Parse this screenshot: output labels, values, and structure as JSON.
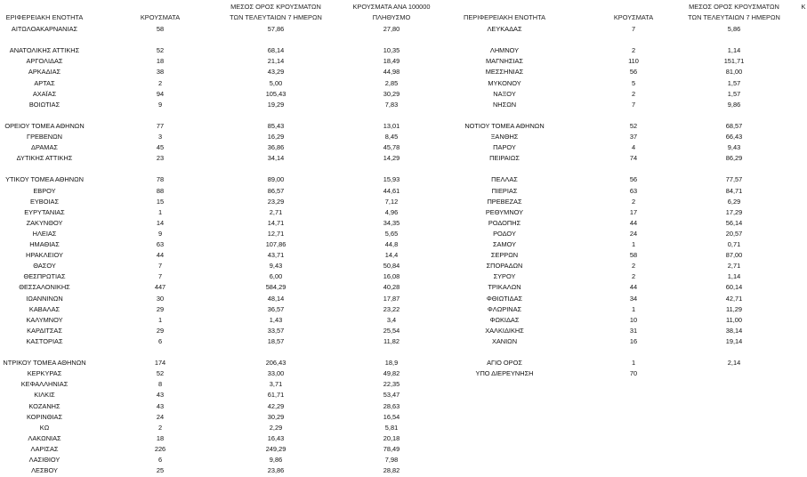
{
  "left": {
    "headers": [
      [
        "ΕΡΙΦΕΡΕΙΑΚΗ ΕΝΟΤΗΤΑ"
      ],
      [
        "ΚΡΟΥΣΜΑΤΑ"
      ],
      [
        "ΜΕΣΟΣ ΟΡΟΣ ΚΡΟΥΣΜΑΤΩΝ",
        "ΤΩΝ ΤΕΛΕΥΤΑΙΩΝ 7 ΗΜΕΡΩΝ"
      ],
      [
        "ΚΡΟΥΣΜΑΤΑ ΑΝΑ 100000",
        "ΠΛΗΘΥΣΜΟ"
      ]
    ],
    "rows": [
      [
        "ΑΙΤΩΛΟΑΚΑΡΝΑΝΙΑΣ",
        "58",
        "57,86",
        "27,80"
      ],
      null,
      [
        "ΑΝΑΤΟΛΙΚΗΣ ΑΤΤΙΚΗΣ",
        "52",
        "68,14",
        "10,35"
      ],
      [
        "ΑΡΓΟΛΙΔΑΣ",
        "18",
        "21,14",
        "18,49"
      ],
      [
        "ΑΡΚΑΔΙΑΣ",
        "38",
        "43,29",
        "44,98"
      ],
      [
        "ΑΡΤΑΣ",
        "2",
        "5,00",
        "2,85"
      ],
      [
        "ΑΧΑΪΑΣ",
        "94",
        "105,43",
        "30,29"
      ],
      [
        "ΒΟΙΩΤΙΑΣ",
        "9",
        "19,29",
        "7,83"
      ],
      null,
      [
        "ΟΡΕΙΟΥ ΤΟΜΕΑ ΑΘΗΝΩΝ",
        "77",
        "85,43",
        "13,01"
      ],
      [
        "ΓΡΕΒΕΝΩΝ",
        "3",
        "16,29",
        "8,45"
      ],
      [
        "ΔΡΑΜΑΣ",
        "45",
        "36,86",
        "45,78"
      ],
      [
        "ΔΥΤΙΚΗΣ ΑΤΤΙΚΗΣ",
        "23",
        "34,14",
        "14,29"
      ],
      null,
      [
        "ΥΤΙΚΟΥ ΤΟΜΕΑ ΑΘΗΝΩΝ",
        "78",
        "89,00",
        "15,93"
      ],
      [
        "ΕΒΡΟΥ",
        "88",
        "86,57",
        "44,61"
      ],
      [
        "ΕΥΒΟΙΑΣ",
        "15",
        "23,29",
        "7,12"
      ],
      [
        "ΕΥΡΥΤΑΝΙΑΣ",
        "1",
        "2,71",
        "4,96"
      ],
      [
        "ΖΑΚΥΝΘΟΥ",
        "14",
        "14,71",
        "34,35"
      ],
      [
        "ΗΛΕΙΑΣ",
        "9",
        "12,71",
        "5,65"
      ],
      [
        "ΗΜΑΘΙΑΣ",
        "63",
        "107,86",
        "44,8"
      ],
      [
        "ΗΡΑΚΛΕΙΟΥ",
        "44",
        "43,71",
        "14,4"
      ],
      [
        "ΘΑΣΟΥ",
        "7",
        "9,43",
        "50,84"
      ],
      [
        "ΘΕΣΠΡΩΤΙΑΣ",
        "7",
        "6,00",
        "16,08"
      ],
      [
        "ΘΕΣΣΑΛΟΝΙΚΗΣ",
        "447",
        "584,29",
        "40,28"
      ],
      [
        "ΙΩΑΝΝΙΝΩΝ",
        "30",
        "48,14",
        "17,87"
      ],
      [
        "ΚΑΒΑΛΑΣ",
        "29",
        "36,57",
        "23,22"
      ],
      [
        "ΚΑΛΥΜΝΟΥ",
        "1",
        "1,43",
        "3,4"
      ],
      [
        "ΚΑΡΔΙΤΣΑΣ",
        "29",
        "33,57",
        "25,54"
      ],
      [
        "ΚΑΣΤΟΡΙΑΣ",
        "6",
        "18,57",
        "11,82"
      ],
      null,
      [
        "ΝΤΡΙΚΟΥ ΤΟΜΕΑ ΑΘΗΝΩΝ",
        "174",
        "206,43",
        "18,9"
      ],
      [
        "ΚΕΡΚΥΡΑΣ",
        "52",
        "33,00",
        "49,82"
      ],
      [
        "ΚΕΦΑΛΛΗΝΙΑΣ",
        "8",
        "3,71",
        "22,35"
      ],
      [
        "ΚΙΛΚΙΣ",
        "43",
        "61,71",
        "53,47"
      ],
      [
        "ΚΟΖΑΝΗΣ",
        "43",
        "42,29",
        "28,63"
      ],
      [
        "ΚΟΡΙΝΘΙΑΣ",
        "24",
        "30,29",
        "16,54"
      ],
      [
        "ΚΩ",
        "2",
        "2,29",
        "5,81"
      ],
      [
        "ΛΑΚΩΝΙΑΣ",
        "18",
        "16,43",
        "20,18"
      ],
      [
        "ΛΑΡΙΣΑΣ",
        "226",
        "249,29",
        "78,49"
      ],
      [
        "ΛΑΣΙΘΙΟΥ",
        "6",
        "9,86",
        "7,98"
      ],
      [
        "ΛΕΣΒΟΥ",
        "25",
        "23,86",
        "28,82"
      ]
    ]
  },
  "right": {
    "headers": [
      [
        "ΠΕΡΙΦΕΡΕΙΑΚΗ ΕΝΟΤΗΤΑ"
      ],
      [
        "ΚΡΟΥΣΜΑΤΑ"
      ],
      [
        "ΜΕΣΟΣ ΟΡΟΣ ΚΡΟΥΣΜΑΤΩΝ",
        "ΤΩΝ ΤΕΛΕΥΤΑΙΩΝ 7 ΗΜΕΡΩΝ"
      ],
      [
        "Κ"
      ]
    ],
    "rows": [
      [
        "ΛΕΥΚΑΔΑΣ",
        "7",
        "5,86"
      ],
      null,
      [
        "ΛΗΜΝΟΥ",
        "2",
        "1,14"
      ],
      [
        "ΜΑΓΝΗΣΙΑΣ",
        "110",
        "151,71"
      ],
      [
        "ΜΕΣΣΗΝΙΑΣ",
        "56",
        "81,00"
      ],
      [
        "ΜΥΚΟΝΟΥ",
        "5",
        "1,57"
      ],
      [
        "ΝΑΞΟΥ",
        "2",
        "1,57"
      ],
      [
        "ΝΗΣΩΝ",
        "7",
        "9,86"
      ],
      null,
      [
        "ΝΟΤΙΟΥ ΤΟΜΕΑ ΑΘΗΝΩΝ",
        "52",
        "68,57"
      ],
      [
        "ΞΑΝΘΗΣ",
        "37",
        "66,43"
      ],
      [
        "ΠΑΡΟΥ",
        "4",
        "9,43"
      ],
      [
        "ΠΕΙΡΑΙΩΣ",
        "74",
        "86,29"
      ],
      null,
      [
        "ΠΕΛΛΑΣ",
        "56",
        "77,57"
      ],
      [
        "ΠΙΕΡΙΑΣ",
        "63",
        "84,71"
      ],
      [
        "ΠΡΕΒΕΖΑΣ",
        "2",
        "6,29"
      ],
      [
        "ΡΕΘΥΜΝΟΥ",
        "17",
        "17,29"
      ],
      [
        "ΡΟΔΟΠΗΣ",
        "44",
        "56,14"
      ],
      [
        "ΡΟΔΟΥ",
        "24",
        "20,57"
      ],
      [
        "ΣΑΜΟΥ",
        "1",
        "0,71"
      ],
      [
        "ΣΕΡΡΩΝ",
        "58",
        "87,00"
      ],
      [
        "ΣΠΟΡΑΔΩΝ",
        "2",
        "2,71"
      ],
      [
        "ΣΥΡΟΥ",
        "2",
        "1,14"
      ],
      [
        "ΤΡΙΚΑΛΩΝ",
        "44",
        "60,14"
      ],
      [
        "ΦΘΙΩΤΙΔΑΣ",
        "34",
        "42,71"
      ],
      [
        "ΦΛΩΡΙΝΑΣ",
        "1",
        "11,29"
      ],
      [
        "ΦΩΚΙΔΑΣ",
        "10",
        "11,00"
      ],
      [
        "ΧΑΛΚΙΔΙΚΗΣ",
        "31",
        "38,14"
      ],
      [
        "ΧΑΝΙΩΝ",
        "16",
        "19,14"
      ],
      null,
      [
        "ΑΓΙΟ ΟΡΟΣ",
        "1",
        "2,14"
      ],
      [
        "ΥΠΟ ΔΙΕΡΕΥΝΗΣΗ",
        "70"
      ]
    ]
  }
}
